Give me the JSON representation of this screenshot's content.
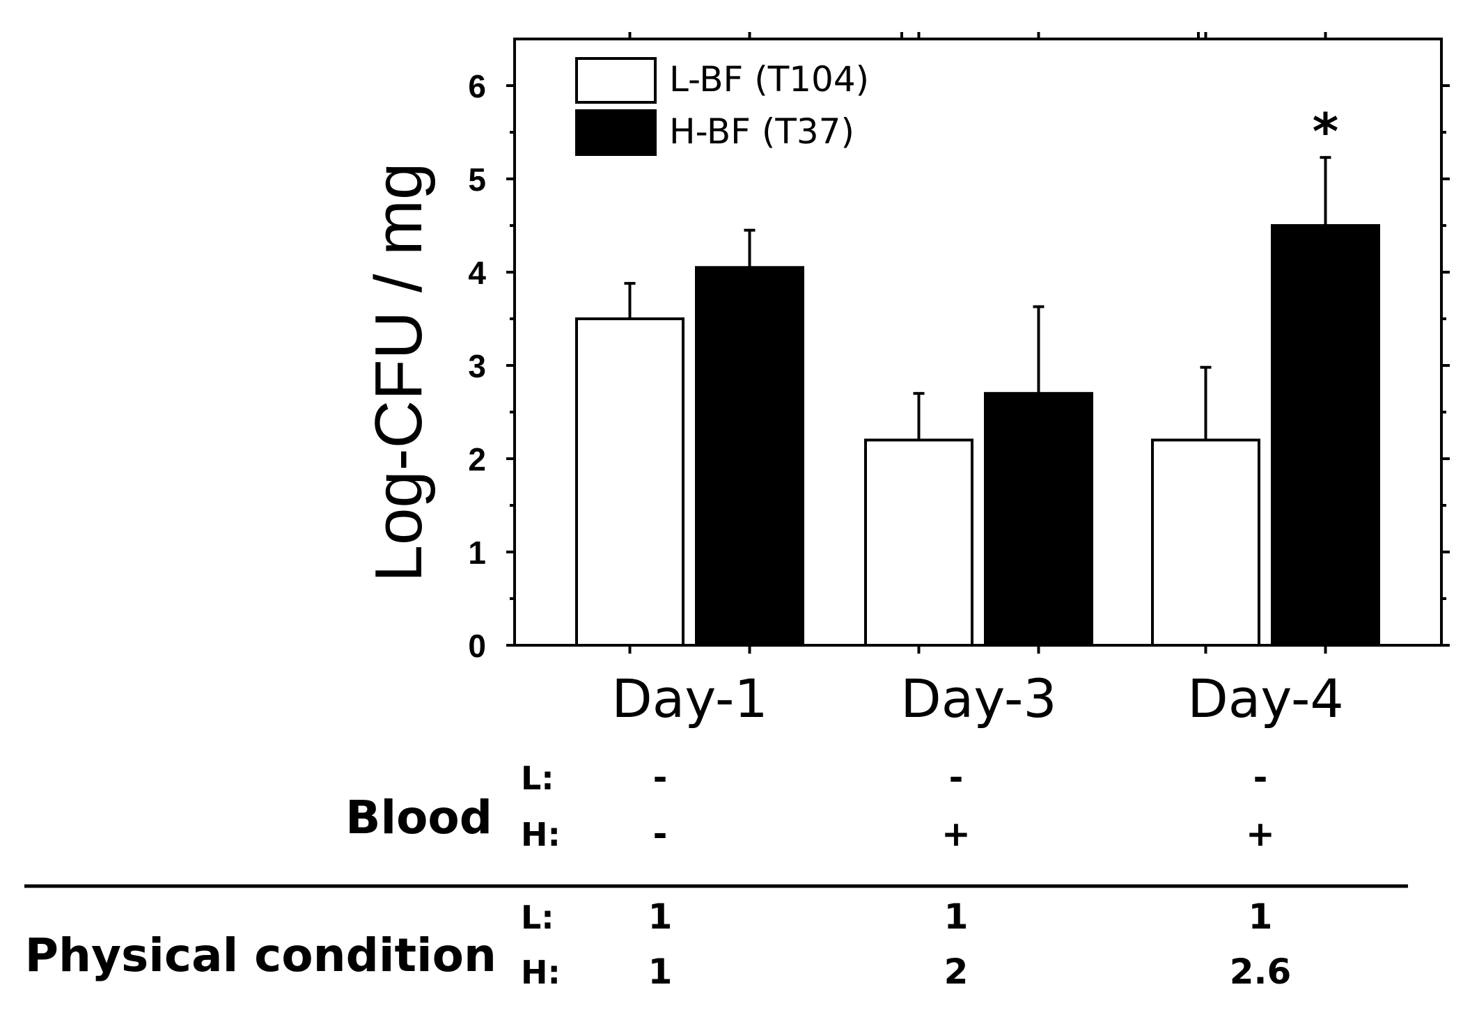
{
  "chart_data": {
    "type": "bar",
    "title": "",
    "xlabel": "",
    "ylabel": "Log-CFU / mg",
    "ylim": [
      0,
      6.5
    ],
    "yticks": [
      "0",
      "1",
      "2",
      "3",
      "4",
      "5",
      "6"
    ],
    "grid": false,
    "legend_position": "top-left",
    "categories": [
      "Day-1",
      "Day-3",
      "Day-4"
    ],
    "series": [
      {
        "name": "L-BF (T104)",
        "fill": "#ffffff",
        "values": [
          3.5,
          2.2,
          2.2
        ],
        "errors": [
          0.38,
          0.5,
          0.78
        ]
      },
      {
        "name": "H-BF (T37)",
        "fill": "#000000",
        "values": [
          4.05,
          2.7,
          4.5
        ],
        "errors": [
          0.4,
          0.93,
          0.73
        ]
      }
    ],
    "annotations": [
      {
        "text": "*",
        "category": "Day-4",
        "series": "H-BF (T37)"
      }
    ]
  },
  "table": {
    "blood": {
      "label": "Blood",
      "rows": [
        {
          "key": "L:",
          "values": [
            "-",
            "-",
            "-"
          ]
        },
        {
          "key": "H:",
          "values": [
            "-",
            "+",
            "+"
          ]
        }
      ]
    },
    "physical": {
      "label": "Physical condition",
      "rows": [
        {
          "key": "L:",
          "values": [
            "1",
            "1",
            "1"
          ]
        },
        {
          "key": "H:",
          "values": [
            "1",
            "2",
            "2.6"
          ]
        }
      ]
    }
  },
  "colors": {
    "ink": "#000000",
    "background": "#ffffff"
  }
}
